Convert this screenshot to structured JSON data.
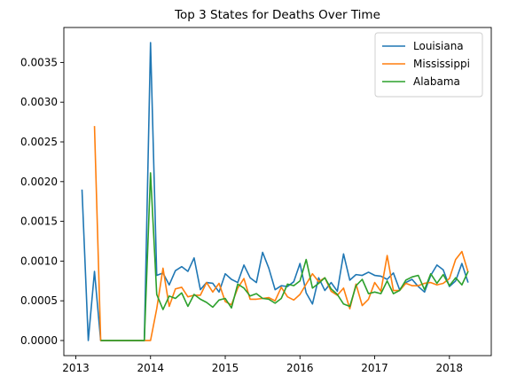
{
  "chart_data": {
    "type": "line",
    "title": "Top 3 States for Deaths Over Time",
    "xlabel": "",
    "ylabel": "",
    "xlim": [
      2012.84,
      2018.56
    ],
    "ylim": [
      -0.00019,
      0.00394
    ],
    "x_ticks": [
      2013,
      2014,
      2015,
      2016,
      2017,
      2018
    ],
    "x_tick_labels": [
      "2013",
      "2014",
      "2015",
      "2016",
      "2017",
      "2018"
    ],
    "y_ticks": [
      0,
      0.0005,
      0.001,
      0.0015,
      0.002,
      0.0025,
      0.003,
      0.0035
    ],
    "y_tick_labels": [
      "0.0000",
      "0.0005",
      "0.0010",
      "0.0015",
      "0.0020",
      "0.0025",
      "0.0030",
      "0.0035"
    ],
    "grid": false,
    "legend_position": "top-right",
    "series": [
      {
        "name": "Louisiana",
        "color": "#1f77b4",
        "x": [
          2013.083,
          2013.167,
          2013.25,
          2013.333,
          2013.417,
          2013.5,
          2013.583,
          2013.667,
          2013.75,
          2013.833,
          2013.917,
          2014.0,
          2014.083,
          2014.167,
          2014.25,
          2014.333,
          2014.417,
          2014.5,
          2014.583,
          2014.667,
          2014.75,
          2014.833,
          2014.917,
          2015.0,
          2015.083,
          2015.167,
          2015.25,
          2015.333,
          2015.417,
          2015.5,
          2015.583,
          2015.667,
          2015.75,
          2015.833,
          2015.917,
          2016.0,
          2016.083,
          2016.167,
          2016.25,
          2016.333,
          2016.417,
          2016.5,
          2016.583,
          2016.667,
          2016.75,
          2016.833,
          2016.917,
          2017.0,
          2017.083,
          2017.167,
          2017.25,
          2017.333,
          2017.417,
          2017.5,
          2017.583,
          2017.667,
          2017.75,
          2017.833,
          2017.917,
          2018.0,
          2018.083,
          2018.167,
          2018.25
        ],
        "y": [
          0.0019,
          0.0,
          0.00087,
          0.0,
          0.0,
          0.0,
          0.0,
          0.0,
          0.0,
          0.0,
          0.0,
          0.00375,
          0.00082,
          0.00085,
          0.0007,
          0.00088,
          0.00093,
          0.00087,
          0.00104,
          0.00064,
          0.00073,
          0.00072,
          0.00061,
          0.00084,
          0.00077,
          0.00073,
          0.00095,
          0.00079,
          0.00073,
          0.00111,
          0.00091,
          0.00064,
          0.00069,
          0.00068,
          0.00074,
          0.00097,
          0.0006,
          0.00046,
          0.00079,
          0.00063,
          0.00073,
          0.00062,
          0.00109,
          0.00076,
          0.00083,
          0.00082,
          0.00086,
          0.00082,
          0.00081,
          0.00077,
          0.00085,
          0.00064,
          0.00073,
          0.00077,
          0.00068,
          0.00061,
          0.00082,
          0.00095,
          0.00089,
          0.00068,
          0.00075,
          0.00097,
          0.00073
        ]
      },
      {
        "name": "Mississippi",
        "color": "#ff7f0e",
        "x": [
          2013.25,
          2013.333,
          2013.417,
          2013.5,
          2013.583,
          2013.667,
          2013.75,
          2013.833,
          2013.917,
          2014.0,
          2014.083,
          2014.167,
          2014.25,
          2014.333,
          2014.417,
          2014.5,
          2014.583,
          2014.667,
          2014.75,
          2014.833,
          2014.917,
          2015.0,
          2015.083,
          2015.167,
          2015.25,
          2015.333,
          2015.417,
          2015.5,
          2015.583,
          2015.667,
          2015.75,
          2015.833,
          2015.917,
          2016.0,
          2016.083,
          2016.167,
          2016.25,
          2016.333,
          2016.417,
          2016.5,
          2016.583,
          2016.667,
          2016.75,
          2016.833,
          2016.917,
          2017.0,
          2017.083,
          2017.167,
          2017.25,
          2017.333,
          2017.417,
          2017.5,
          2017.583,
          2017.667,
          2017.75,
          2017.833,
          2017.917,
          2018.0,
          2018.083,
          2018.167,
          2018.25
        ],
        "y": [
          0.0027,
          0.0,
          0.0,
          0.0,
          0.0,
          0.0,
          0.0,
          0.0,
          0.0,
          0.0,
          0.0004,
          0.00091,
          0.00043,
          0.00065,
          0.00067,
          0.00055,
          0.00057,
          0.00057,
          0.00073,
          0.00061,
          0.00072,
          0.00049,
          0.00045,
          0.00066,
          0.00078,
          0.00052,
          0.00052,
          0.00053,
          0.00054,
          0.0005,
          0.00067,
          0.00055,
          0.00051,
          0.00058,
          0.00071,
          0.00084,
          0.00074,
          0.00079,
          0.00062,
          0.00057,
          0.00066,
          0.0004,
          0.00071,
          0.00044,
          0.00052,
          0.00073,
          0.00062,
          0.00107,
          0.00063,
          0.00063,
          0.00072,
          0.00069,
          0.00069,
          0.00072,
          0.00073,
          0.0007,
          0.00072,
          0.00078,
          0.00102,
          0.00112,
          0.00086
        ]
      },
      {
        "name": "Alabama",
        "color": "#2ca02c",
        "x": [
          2013.333,
          2013.417,
          2013.5,
          2013.583,
          2013.667,
          2013.75,
          2013.833,
          2013.917,
          2014.0,
          2014.083,
          2014.167,
          2014.25,
          2014.333,
          2014.417,
          2014.5,
          2014.583,
          2014.667,
          2014.75,
          2014.833,
          2014.917,
          2015.0,
          2015.083,
          2015.167,
          2015.25,
          2015.333,
          2015.417,
          2015.5,
          2015.583,
          2015.667,
          2015.75,
          2015.833,
          2015.917,
          2016.0,
          2016.083,
          2016.167,
          2016.25,
          2016.333,
          2016.417,
          2016.5,
          2016.583,
          2016.667,
          2016.75,
          2016.833,
          2016.917,
          2017.0,
          2017.083,
          2017.167,
          2017.25,
          2017.333,
          2017.417,
          2017.5,
          2017.583,
          2017.667,
          2017.75,
          2017.833,
          2017.917,
          2018.0,
          2018.083,
          2018.167,
          2018.25
        ],
        "y": [
          0.0,
          0.0,
          0.0,
          0.0,
          0.0,
          0.0,
          0.0,
          0.0,
          0.00211,
          0.00058,
          0.00039,
          0.00056,
          0.00053,
          0.0006,
          0.00043,
          0.00058,
          0.00052,
          0.00048,
          0.00042,
          0.00051,
          0.00053,
          0.00041,
          0.00071,
          0.00066,
          0.00056,
          0.00059,
          0.00053,
          0.00052,
          0.00047,
          0.00053,
          0.00071,
          0.00069,
          0.00075,
          0.00102,
          0.00066,
          0.00072,
          0.00079,
          0.00065,
          0.00058,
          0.00046,
          0.00043,
          0.00069,
          0.00077,
          0.00059,
          0.00061,
          0.00059,
          0.00075,
          0.00059,
          0.00063,
          0.00076,
          0.0008,
          0.00082,
          0.00064,
          0.00084,
          0.00072,
          0.00083,
          0.00069,
          0.00079,
          0.0007,
          0.00087
        ]
      }
    ]
  }
}
